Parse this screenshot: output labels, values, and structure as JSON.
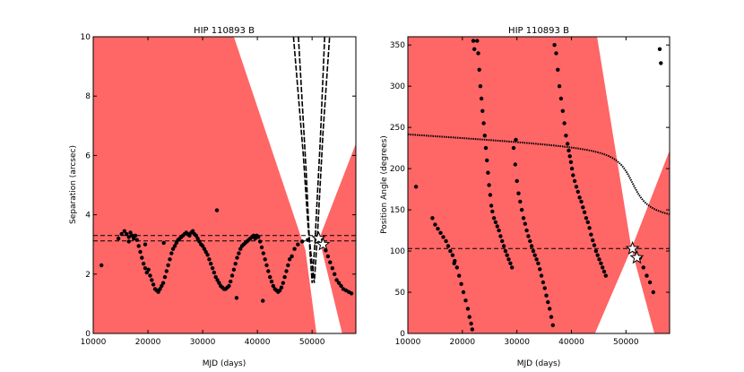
{
  "chart_data": [
    {
      "type": "scatter",
      "title": "HIP 110893 B",
      "xlabel": "MJD (days)",
      "ylabel": "Separation (arcsec)",
      "xlim": [
        10000,
        58000
      ],
      "ylim": [
        0,
        10
      ],
      "xticks": [
        10000,
        20000,
        30000,
        40000,
        50000
      ],
      "yticks": [
        0,
        2,
        4,
        6,
        8,
        10
      ],
      "shade_color": "#ff6666",
      "shade_regions": [
        {
          "name": "left-wedge",
          "polygon": [
            [
              10000,
              10
            ],
            [
              35700,
              10
            ],
            [
              48800,
              2.8
            ],
            [
              50800,
              0
            ],
            [
              10000,
              0
            ]
          ]
        },
        {
          "name": "right-wedge",
          "polygon": [
            [
              51300,
              3.2
            ],
            [
              58000,
              6.4
            ],
            [
              58000,
              0
            ],
            [
              55500,
              0
            ]
          ]
        }
      ],
      "reference_lines": [
        3.3,
        3.12
      ],
      "reference_epoch": 51200,
      "series": [
        {
          "name": "separation measurements",
          "x": [
            11500,
            14600,
            15200,
            15700,
            16100,
            16500,
            16800,
            17100,
            17400,
            17700,
            18000,
            18300,
            18600,
            18900,
            19200,
            19500,
            19800,
            20100,
            20400,
            20700,
            21000,
            21300,
            21600,
            21900,
            22200,
            22500,
            22800,
            23100,
            23400,
            23700,
            24000,
            24300,
            24600,
            24900,
            25200,
            25500,
            25800,
            26100,
            26400,
            26700,
            27000,
            27300,
            27600,
            27900,
            28200,
            28500,
            28800,
            29100,
            29400,
            29700,
            30000,
            30300,
            30600,
            30900,
            31200,
            31500,
            31800,
            32100,
            32400,
            32700,
            33000,
            33300,
            33600,
            33900,
            34200,
            34500,
            34800,
            35100,
            35400,
            35700,
            36000,
            36300,
            36600,
            36900,
            37200,
            37500,
            37800,
            38100,
            38400,
            38700,
            39000,
            39300,
            39600,
            39900,
            40200,
            40500,
            40800,
            41100,
            41400,
            41700,
            42000,
            42300,
            42600,
            42900,
            43200,
            43500,
            43800,
            44100,
            44400,
            44700,
            45000,
            45300,
            45600,
            45900,
            46300,
            46800,
            47400,
            48200,
            49200,
            52500,
            52900,
            53300,
            53700,
            54100,
            54500,
            54900,
            55300,
            55700,
            56200,
            56700,
            57200,
            32600,
            19500,
            41000,
            22900,
            16500,
            36200
          ],
          "y": [
            2.3,
            3.2,
            3.35,
            3.45,
            3.35,
            3.25,
            3.4,
            3.3,
            3.2,
            3.3,
            3.15,
            2.95,
            2.75,
            2.55,
            2.35,
            2.2,
            2.05,
            2.15,
            1.95,
            1.8,
            1.65,
            1.5,
            1.45,
            1.4,
            1.5,
            1.6,
            1.7,
            1.9,
            2.1,
            2.3,
            2.5,
            2.7,
            2.85,
            2.95,
            3.05,
            3.15,
            3.2,
            3.25,
            3.3,
            3.35,
            3.4,
            3.35,
            3.3,
            3.4,
            3.45,
            3.35,
            3.3,
            3.2,
            3.1,
            3.0,
            2.95,
            2.85,
            2.75,
            2.65,
            2.5,
            2.35,
            2.2,
            2.05,
            1.9,
            1.8,
            1.7,
            1.6,
            1.55,
            1.5,
            1.5,
            1.55,
            1.6,
            1.75,
            1.95,
            2.15,
            2.35,
            2.55,
            2.7,
            2.85,
            2.95,
            3.0,
            3.05,
            3.1,
            3.15,
            3.2,
            3.25,
            3.3,
            3.2,
            3.3,
            3.25,
            3.1,
            2.9,
            2.7,
            2.5,
            2.3,
            2.1,
            1.9,
            1.75,
            1.6,
            1.5,
            1.45,
            1.4,
            1.45,
            1.55,
            1.7,
            1.9,
            2.1,
            2.3,
            2.5,
            2.6,
            2.85,
            3.0,
            3.1,
            3.15,
            2.8,
            2.6,
            2.4,
            2.2,
            2.0,
            1.8,
            1.7,
            1.6,
            1.5,
            1.45,
            1.4,
            1.35,
            4.15,
            3.0,
            1.1,
            3.05,
            3.1,
            1.2
          ]
        }
      ]
    },
    {
      "type": "scatter",
      "title": "HIP 110893 B",
      "xlabel": "MJD (days)",
      "ylabel": "Position Angle (degrees)",
      "xlim": [
        10000,
        58000
      ],
      "ylim": [
        0,
        360
      ],
      "xticks": [
        10000,
        20000,
        30000,
        40000,
        50000
      ],
      "yticks": [
        0,
        50,
        100,
        150,
        200,
        250,
        300,
        350
      ],
      "shade_color": "#ff6666",
      "shade_regions": [
        {
          "name": "left-wedge",
          "polygon": [
            [
              10000,
              360
            ],
            [
              44700,
              360
            ],
            [
              51000,
              103
            ],
            [
              44300,
              0
            ],
            [
              10000,
              0
            ]
          ]
        },
        {
          "name": "right-wedge",
          "polygon": [
            [
              51000,
              103
            ],
            [
              58000,
              222
            ],
            [
              58000,
              0
            ],
            [
              55200,
              0
            ]
          ]
        }
      ],
      "reference_lines": [
        103
      ],
      "reference_epoch": 51200,
      "series": [
        {
          "name": "position angle measurements",
          "x": [
            11500,
            14500,
            15000,
            15500,
            16000,
            16500,
            17000,
            17400,
            17800,
            18200,
            18600,
            19000,
            19400,
            19800,
            20200,
            20600,
            21000,
            21300,
            21600,
            21800,
            22000,
            22200,
            22700,
            22900,
            23100,
            23300,
            23500,
            23700,
            23900,
            24100,
            24300,
            24500,
            24700,
            24900,
            25100,
            25300,
            25500,
            25800,
            26100,
            26400,
            26700,
            27000,
            27300,
            27600,
            27900,
            28200,
            28500,
            28800,
            29100,
            29400,
            29700,
            30000,
            30300,
            30600,
            30900,
            31200,
            31500,
            31800,
            32100,
            32400,
            32700,
            33000,
            33300,
            33600,
            33900,
            34200,
            34500,
            34800,
            35100,
            35400,
            35700,
            36000,
            36300,
            36600,
            36900,
            37200,
            37500,
            37800,
            38100,
            38400,
            38700,
            39000,
            39300,
            39500,
            39700,
            39900,
            40100,
            40300,
            40600,
            40900,
            41200,
            41500,
            41800,
            42100,
            42400,
            42700,
            43000,
            43300,
            43600,
            43900,
            44200,
            44500,
            44800,
            45100,
            45400,
            45700,
            46000,
            46300,
            52600,
            53200,
            53800,
            54400,
            55000,
            56200,
            56400,
            18500,
            29800
          ],
          "y": [
            178,
            140,
            132,
            127,
            122,
            117,
            112,
            106,
            100,
            95,
            88,
            80,
            70,
            60,
            50,
            40,
            30,
            20,
            12,
            5,
            355,
            345,
            355,
            340,
            320,
            300,
            285,
            270,
            255,
            240,
            225,
            210,
            195,
            180,
            168,
            155,
            148,
            140,
            135,
            130,
            125,
            118,
            112,
            106,
            100,
            95,
            90,
            85,
            80,
            225,
            205,
            185,
            170,
            160,
            150,
            140,
            133,
            125,
            118,
            112,
            106,
            100,
            95,
            90,
            85,
            78,
            70,
            62,
            55,
            46,
            38,
            30,
            20,
            10,
            350,
            340,
            320,
            300,
            285,
            270,
            255,
            240,
            230,
            222,
            215,
            208,
            200,
            192,
            185,
            178,
            172,
            165,
            160,
            153,
            147,
            140,
            135,
            128,
            120,
            113,
            107,
            100,
            95,
            90,
            85,
            80,
            75,
            70,
            92,
            80,
            70,
            62,
            50,
            345,
            328,
            85,
            235
          ]
        }
      ]
    }
  ]
}
